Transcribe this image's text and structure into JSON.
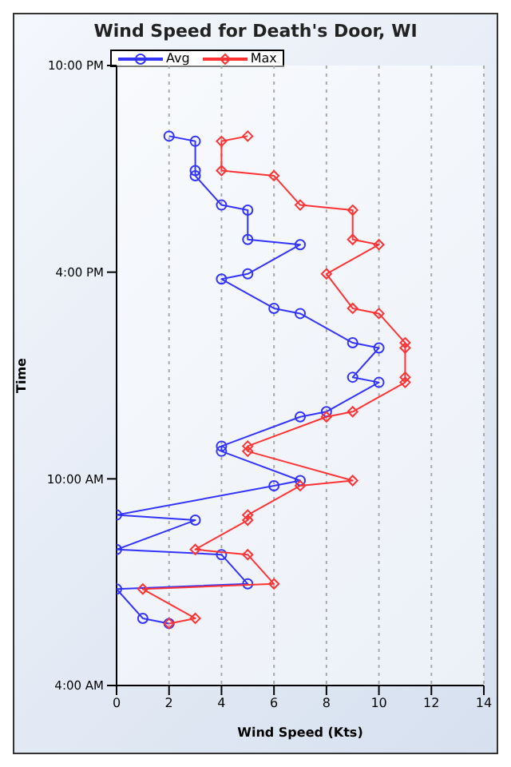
{
  "chart_data": {
    "type": "line",
    "title": "Wind Speed for Death's Door, WI",
    "xlabel": "Wind Speed (Kts)",
    "ylabel": "Time",
    "xlim": [
      0,
      14
    ],
    "xticks": [
      0,
      2,
      4,
      6,
      8,
      10,
      12,
      14
    ],
    "ylim": [
      4,
      22
    ],
    "yticks": [
      {
        "value": 4,
        "label": "4:00 AM"
      },
      {
        "value": 10,
        "label": "10:00 AM"
      },
      {
        "value": 16,
        "label": "4:00 PM"
      },
      {
        "value": 22,
        "label": "10:00 PM"
      }
    ],
    "grid": "x",
    "legend": "top left",
    "series": [
      {
        "name": "Avg",
        "color": "#3333ff",
        "marker": "circle",
        "x": [
          2,
          1,
          0,
          5,
          4,
          0,
          3,
          0,
          6,
          7,
          4,
          4,
          7,
          8,
          10,
          9,
          10,
          9,
          7,
          6,
          4,
          5,
          7,
          5,
          5,
          4,
          3,
          3,
          3,
          2
        ],
        "values": [
          5.8,
          5.95,
          6.8,
          6.95,
          7.8,
          7.95,
          8.8,
          8.95,
          9.8,
          9.95,
          10.8,
          10.95,
          11.8,
          11.95,
          12.8,
          12.95,
          13.8,
          13.95,
          14.8,
          14.95,
          15.8,
          15.95,
          16.8,
          16.95,
          17.8,
          17.95,
          18.8,
          18.95,
          19.8,
          19.95
        ]
      },
      {
        "name": "Max",
        "color": "#ff3333",
        "marker": "diamond",
        "x": [
          2,
          3,
          1,
          6,
          5,
          3,
          5,
          5,
          7,
          9,
          5,
          5,
          8,
          9,
          11,
          11,
          11,
          11,
          10,
          9,
          8,
          10,
          9,
          9,
          7,
          6,
          4,
          4,
          5
        ],
        "values": [
          5.8,
          5.95,
          6.8,
          6.95,
          7.8,
          7.95,
          8.8,
          8.95,
          9.8,
          9.95,
          10.8,
          10.95,
          11.8,
          11.95,
          12.8,
          12.95,
          13.8,
          13.95,
          14.8,
          14.95,
          15.95,
          16.8,
          16.95,
          17.8,
          17.95,
          18.8,
          18.95,
          19.8,
          19.95
        ]
      }
    ]
  }
}
